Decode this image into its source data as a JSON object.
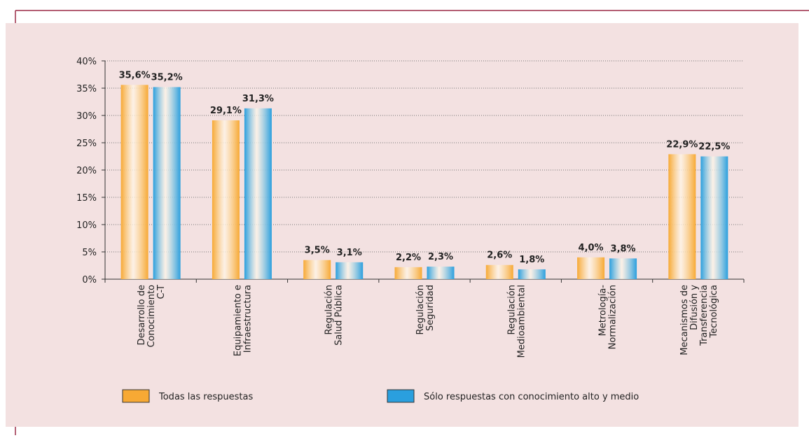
{
  "chart_data": {
    "type": "bar",
    "categories": [
      [
        "Desarrollo de",
        "Conocimiento",
        "C-T"
      ],
      [
        "Equipamiento e",
        "Infraestructura"
      ],
      [
        "Regulación",
        "Salud Pública"
      ],
      [
        "Regulación",
        "Seguridad"
      ],
      [
        "Regulación",
        "Medioambiental"
      ],
      [
        "Metrología-",
        "Normalización"
      ],
      [
        "Mecanismos de",
        "Difusión y",
        "Transferencia",
        "Tecnológica"
      ]
    ],
    "series": [
      {
        "name": "Todas las respuestas",
        "color": "#f7a934",
        "values": [
          35.6,
          29.1,
          3.5,
          2.2,
          2.6,
          4.0,
          22.9
        ],
        "value_labels": [
          "35,6%",
          "29,1%",
          "3,5%",
          "2,2%",
          "2,6%",
          "4,0%",
          "22,9%"
        ]
      },
      {
        "name": "Sólo respuestas con conocimiento alto y medio",
        "color": "#2a9fde",
        "values": [
          35.2,
          31.3,
          3.1,
          2.3,
          1.8,
          3.8,
          22.5
        ],
        "value_labels": [
          "35,2%",
          "31,3%",
          "3,1%",
          "2,3%",
          "1,8%",
          "3,8%",
          "22,5%"
        ]
      }
    ],
    "ylim": [
      0,
      40
    ],
    "yticks": [
      {
        "value": 0,
        "label": "0%"
      },
      {
        "value": 5,
        "label": "5%"
      },
      {
        "value": 10,
        "label": "10%"
      },
      {
        "value": 15,
        "label": "15%"
      },
      {
        "value": 20,
        "label": "20%"
      },
      {
        "value": 25,
        "label": "25%"
      },
      {
        "value": 30,
        "label": "30%"
      },
      {
        "value": 35,
        "label": "35%"
      },
      {
        "value": 40,
        "label": "40%"
      }
    ],
    "grid": true
  }
}
